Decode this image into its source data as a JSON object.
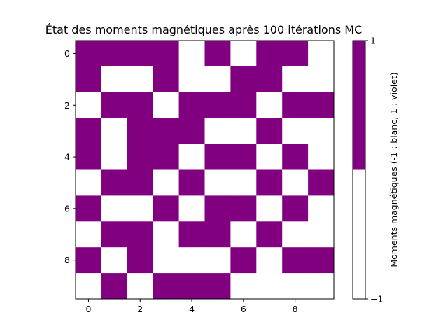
{
  "chart_data": {
    "type": "heatmap",
    "title": "État des moments magnétiques après 100 itérations MC",
    "xlabel": "",
    "ylabel": "",
    "x_ticks": [
      "0",
      "2",
      "4",
      "6",
      "8"
    ],
    "y_ticks": [
      "0",
      "2",
      "4",
      "6",
      "8"
    ],
    "x_tick_values": [
      0,
      2,
      4,
      6,
      8
    ],
    "y_tick_values": [
      0,
      2,
      4,
      6,
      8
    ],
    "xlim": [
      -0.5,
      9.5
    ],
    "ylim": [
      9.5,
      -0.5
    ],
    "grid": false,
    "colormap": {
      "-1": "#ffffff",
      "1": "#800080"
    },
    "colorbar": {
      "label": "Moments magnétiques (-1 : blanc, 1 : violet)",
      "ticks": [
        "1",
        "−1"
      ],
      "tick_values": [
        1,
        -1
      ],
      "range": [
        -1,
        1
      ]
    },
    "values": [
      [
        1,
        1,
        1,
        1,
        -1,
        1,
        -1,
        1,
        1,
        -1
      ],
      [
        1,
        -1,
        -1,
        1,
        -1,
        -1,
        1,
        1,
        -1,
        -1
      ],
      [
        -1,
        1,
        1,
        -1,
        1,
        1,
        1,
        -1,
        1,
        1
      ],
      [
        1,
        -1,
        1,
        1,
        1,
        -1,
        -1,
        1,
        -1,
        -1
      ],
      [
        1,
        -1,
        1,
        1,
        -1,
        1,
        1,
        -1,
        1,
        -1
      ],
      [
        -1,
        1,
        1,
        -1,
        1,
        -1,
        -1,
        1,
        -1,
        1
      ],
      [
        1,
        -1,
        -1,
        1,
        -1,
        1,
        1,
        -1,
        1,
        -1
      ],
      [
        -1,
        1,
        1,
        -1,
        1,
        1,
        -1,
        1,
        -1,
        -1
      ],
      [
        1,
        -1,
        1,
        -1,
        -1,
        -1,
        1,
        -1,
        1,
        1
      ],
      [
        -1,
        1,
        -1,
        1,
        1,
        1,
        -1,
        -1,
        -1,
        -1
      ]
    ]
  }
}
